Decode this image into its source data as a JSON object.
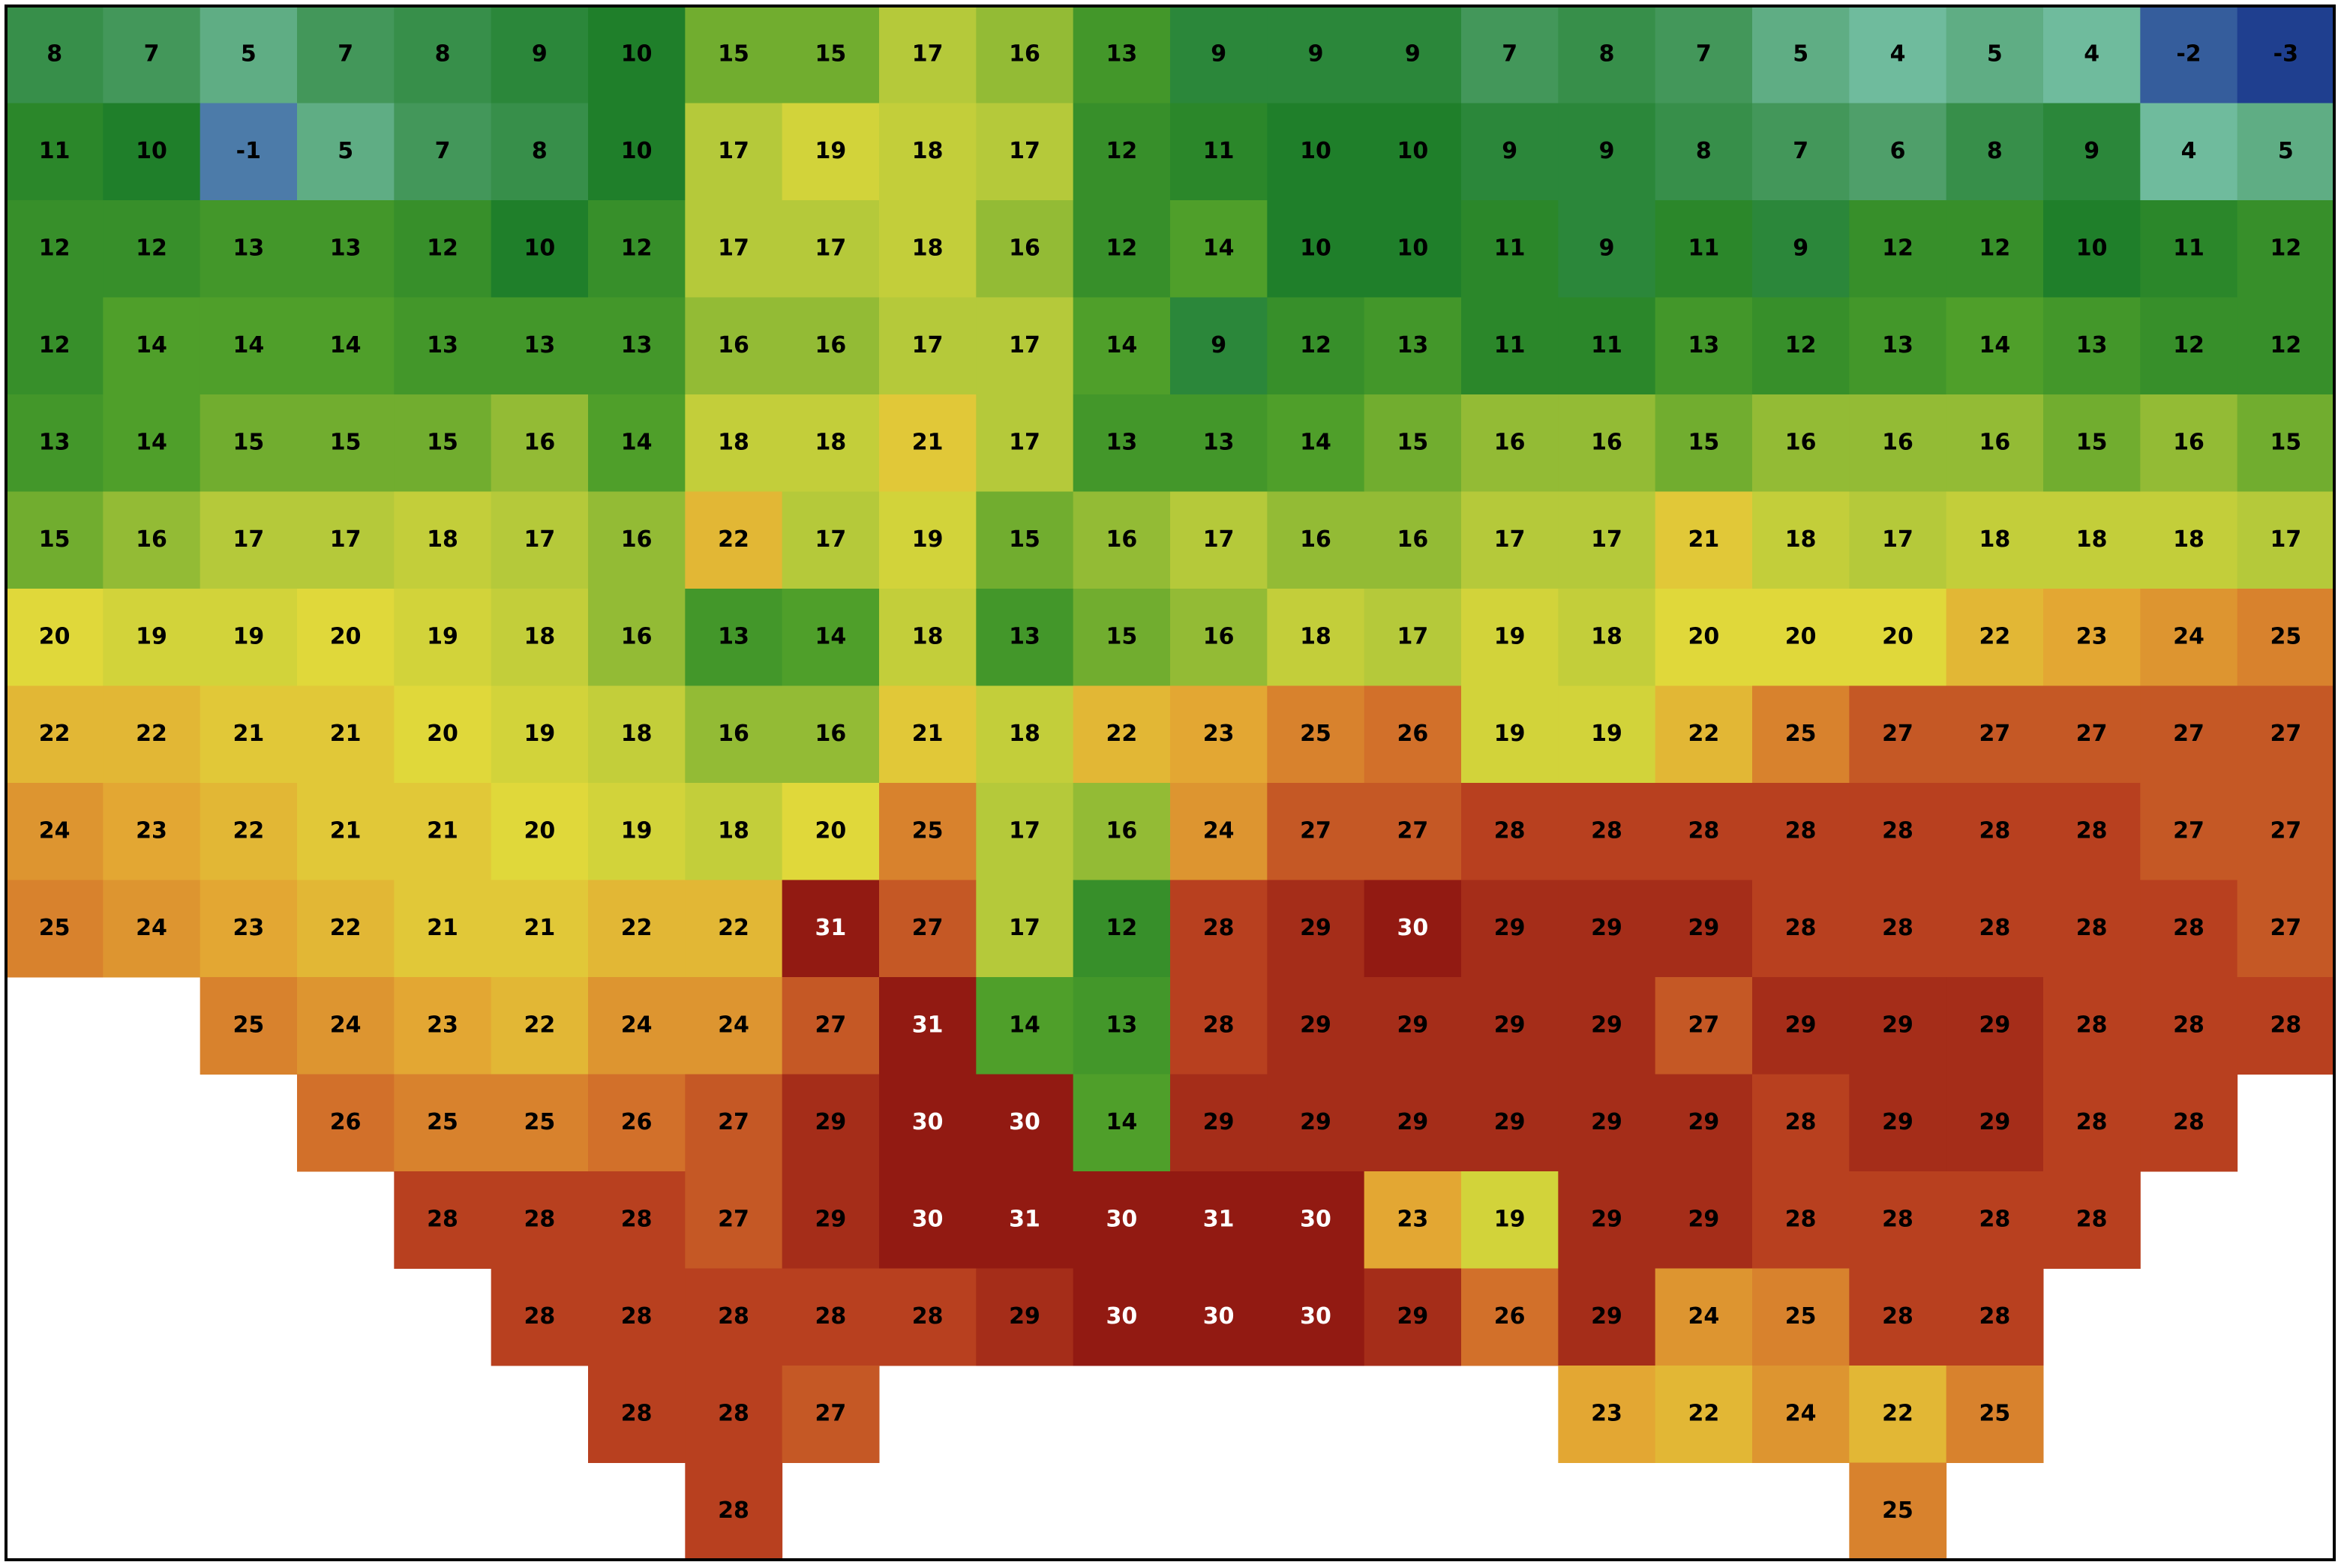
{
  "grid": {
    "rows": [
      [
        8,
        7,
        5,
        7,
        8,
        9,
        10,
        15,
        15,
        17,
        16,
        13,
        9,
        9,
        9,
        7,
        8,
        7,
        5,
        4,
        5,
        4,
        -2,
        -3
      ],
      [
        11,
        10,
        -1,
        5,
        7,
        8,
        10,
        17,
        19,
        18,
        17,
        12,
        11,
        10,
        10,
        9,
        9,
        8,
        7,
        6,
        8,
        9,
        4,
        5
      ],
      [
        12,
        12,
        13,
        13,
        12,
        10,
        12,
        17,
        17,
        18,
        16,
        12,
        14,
        10,
        10,
        11,
        9,
        11,
        9,
        12,
        12,
        10,
        11,
        12
      ],
      [
        12,
        14,
        14,
        14,
        13,
        13,
        13,
        16,
        16,
        17,
        17,
        14,
        9,
        12,
        13,
        11,
        11,
        13,
        12,
        13,
        14,
        13,
        12,
        12
      ],
      [
        13,
        14,
        15,
        15,
        15,
        16,
        14,
        18,
        18,
        21,
        17,
        13,
        13,
        14,
        15,
        16,
        16,
        15,
        16,
        16,
        16,
        15,
        16,
        15
      ],
      [
        15,
        16,
        17,
        17,
        18,
        17,
        16,
        22,
        17,
        19,
        15,
        16,
        17,
        16,
        16,
        17,
        17,
        21,
        18,
        17,
        18,
        18,
        18,
        17
      ],
      [
        20,
        19,
        19,
        20,
        19,
        18,
        16,
        13,
        14,
        18,
        13,
        15,
        16,
        18,
        17,
        19,
        18,
        20,
        20,
        20,
        22,
        23,
        24,
        25
      ],
      [
        22,
        22,
        21,
        21,
        20,
        19,
        18,
        16,
        16,
        21,
        18,
        22,
        23,
        25,
        26,
        19,
        19,
        22,
        25,
        27,
        27,
        27,
        27,
        27
      ],
      [
        24,
        23,
        22,
        21,
        21,
        20,
        19,
        18,
        20,
        25,
        17,
        16,
        24,
        27,
        27,
        28,
        28,
        28,
        28,
        28,
        28,
        28,
        27,
        27
      ],
      [
        25,
        24,
        23,
        22,
        21,
        21,
        22,
        22,
        31,
        27,
        17,
        12,
        28,
        29,
        30,
        29,
        29,
        29,
        28,
        28,
        28,
        28,
        28,
        27
      ],
      [
        null,
        null,
        25,
        24,
        23,
        22,
        24,
        24,
        27,
        31,
        14,
        13,
        28,
        29,
        29,
        29,
        29,
        27,
        29,
        29,
        29,
        28,
        28,
        28
      ],
      [
        null,
        null,
        null,
        26,
        25,
        25,
        26,
        27,
        29,
        30,
        30,
        14,
        29,
        29,
        29,
        29,
        29,
        29,
        28,
        29,
        29,
        28,
        28,
        null
      ],
      [
        null,
        null,
        null,
        null,
        28,
        28,
        28,
        27,
        29,
        30,
        31,
        30,
        31,
        30,
        23,
        19,
        29,
        29,
        28,
        28,
        28,
        28,
        null,
        null
      ],
      [
        null,
        null,
        null,
        null,
        null,
        28,
        28,
        28,
        28,
        28,
        29,
        30,
        30,
        30,
        29,
        26,
        29,
        24,
        25,
        28,
        28,
        null,
        null,
        null
      ],
      [
        null,
        null,
        null,
        null,
        null,
        null,
        28,
        28,
        27,
        null,
        null,
        null,
        null,
        null,
        null,
        null,
        23,
        22,
        24,
        22,
        25,
        null,
        null,
        null
      ],
      [
        null,
        null,
        null,
        null,
        null,
        null,
        null,
        28,
        null,
        null,
        null,
        null,
        null,
        null,
        null,
        null,
        null,
        null,
        null,
        25,
        null,
        null,
        null,
        null
      ]
    ],
    "colormap": [
      {
        "value": -3,
        "color": "#1f3f8f"
      },
      {
        "value": 2,
        "color": "#8fd6d0"
      },
      {
        "value": 6,
        "color": "#4f9f6a"
      },
      {
        "value": 10,
        "color": "#1f7f2a"
      },
      {
        "value": 14,
        "color": "#4f9f2a"
      },
      {
        "value": 17,
        "color": "#b5c93a"
      },
      {
        "value": 20,
        "color": "#e0d83a"
      },
      {
        "value": 23,
        "color": "#e3a733"
      },
      {
        "value": 26,
        "color": "#d2702a"
      },
      {
        "value": 28,
        "color": "#b8401f"
      },
      {
        "value": 30,
        "color": "#921a12"
      }
    ],
    "white_label_from": 30
  }
}
